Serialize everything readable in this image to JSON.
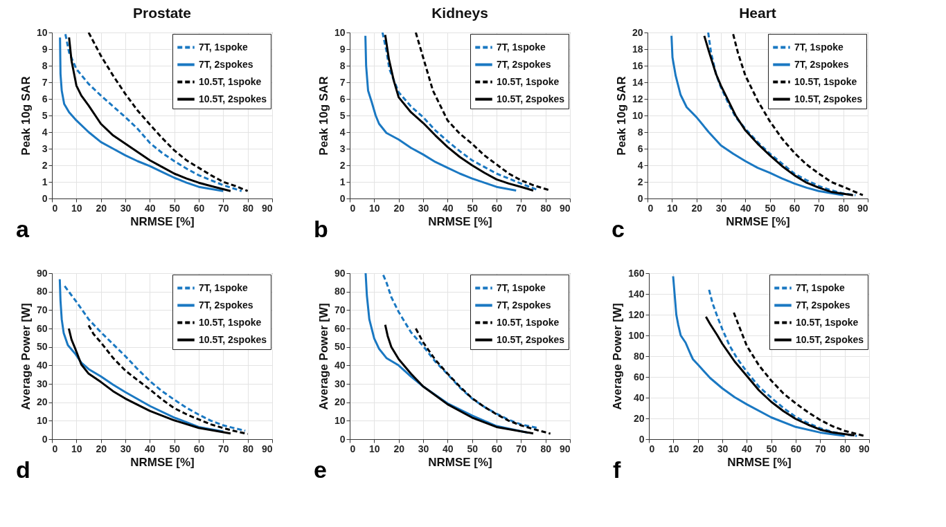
{
  "chart_data": [
    {
      "type": "line",
      "title": "Prostate",
      "xlabel": "NRMSE [%]",
      "ylabel": "Peak 10g SAR",
      "annotations": [
        "a"
      ],
      "xlim": [
        0,
        90
      ],
      "xticks": [
        0,
        10,
        20,
        30,
        40,
        50,
        60,
        70,
        80,
        90
      ],
      "ylim": [
        0,
        10
      ],
      "yticks": [
        0,
        1,
        2,
        3,
        4,
        5,
        6,
        7,
        8,
        9,
        10
      ],
      "grid": true,
      "legend": "top right",
      "series": [
        {
          "name": "7T, 1spoke",
          "color": "#1a78c2",
          "line_style": "dashed",
          "x": [
            5.5,
            7,
            10,
            15,
            20,
            25,
            30,
            35,
            40,
            45,
            50,
            55,
            60,
            65,
            70,
            77.5
          ],
          "values": [
            9.9,
            8.8,
            7.8,
            6.9,
            6.2,
            5.55,
            4.9,
            4.2,
            3.35,
            2.75,
            2.25,
            1.8,
            1.4,
            1.1,
            0.8,
            0.45
          ]
        },
        {
          "name": "7T, 2spokes",
          "color": "#1a78c2",
          "line_style": "solid",
          "x": [
            3.3,
            3.5,
            4,
            5,
            7,
            10,
            15,
            20,
            25,
            30,
            35,
            40,
            45,
            50,
            55,
            60,
            70
          ],
          "values": [
            9.7,
            7.5,
            6.5,
            5.7,
            5.2,
            4.7,
            4.0,
            3.4,
            3.0,
            2.6,
            2.25,
            1.95,
            1.6,
            1.25,
            0.95,
            0.7,
            0.45
          ]
        },
        {
          "name": "10.5T, 1spoke",
          "color": "#000000",
          "line_style": "dashed",
          "x": [
            15,
            20,
            25,
            30,
            35,
            40,
            45,
            50,
            55,
            60,
            65,
            70,
            75,
            80
          ],
          "values": [
            10,
            8.6,
            7.4,
            6.3,
            5.3,
            4.46,
            3.65,
            2.9,
            2.3,
            1.85,
            1.4,
            1.0,
            0.75,
            0.45
          ]
        },
        {
          "name": "10.5T, 2spokes",
          "color": "#000000",
          "line_style": "solid",
          "x": [
            7,
            8,
            10,
            12,
            15,
            20,
            25,
            30,
            35,
            40,
            45,
            50,
            55,
            60,
            65,
            73
          ],
          "values": [
            9.7,
            8.3,
            6.8,
            6.2,
            5.6,
            4.5,
            3.8,
            3.3,
            2.8,
            2.3,
            1.9,
            1.5,
            1.2,
            0.95,
            0.75,
            0.45
          ]
        }
      ]
    },
    {
      "type": "line",
      "title": "Kidneys",
      "xlabel": "NRMSE [%]",
      "ylabel": "Peak 10g SAR",
      "annotations": [
        "b"
      ],
      "xlim": [
        0,
        90
      ],
      "xticks": [
        0,
        10,
        20,
        30,
        40,
        50,
        60,
        70,
        80,
        90
      ],
      "ylim": [
        0,
        10
      ],
      "yticks": [
        0,
        1,
        2,
        3,
        4,
        5,
        6,
        7,
        8,
        9,
        10
      ],
      "grid": true,
      "legend": "top right",
      "series": [
        {
          "name": "7T, 1spoke",
          "color": "#1a78c2",
          "line_style": "dashed",
          "x": [
            13.4,
            15,
            16.2,
            20,
            25,
            30,
            35,
            40,
            45,
            50,
            55,
            60,
            65,
            70,
            77
          ],
          "values": [
            10,
            8.9,
            7.8,
            6.4,
            5.55,
            4.9,
            4.1,
            3.45,
            2.85,
            2.3,
            1.9,
            1.5,
            1.2,
            0.9,
            0.5
          ]
        },
        {
          "name": "7T, 2spokes",
          "color": "#1a78c2",
          "line_style": "solid",
          "x": [
            6.4,
            6.7,
            7.5,
            9,
            10.6,
            12,
            15,
            20,
            25,
            30,
            35,
            40,
            45,
            50,
            55,
            60,
            68
          ],
          "values": [
            9.8,
            8,
            6.5,
            5.8,
            5.0,
            4.5,
            3.95,
            3.55,
            3.05,
            2.65,
            2.2,
            1.85,
            1.5,
            1.2,
            0.95,
            0.7,
            0.48
          ]
        },
        {
          "name": "10.5T, 1spoke",
          "color": "#000000",
          "line_style": "dashed",
          "x": [
            27,
            30,
            34,
            38,
            40,
            45,
            50,
            55,
            60,
            65,
            70,
            75,
            82
          ],
          "values": [
            10,
            8.5,
            6.5,
            5.3,
            4.7,
            3.9,
            3.3,
            2.6,
            2.05,
            1.5,
            1.1,
            0.8,
            0.48
          ]
        },
        {
          "name": "10.5T, 2spokes",
          "color": "#000000",
          "line_style": "solid",
          "x": [
            14.5,
            16,
            18,
            20,
            25,
            30,
            35,
            40,
            45,
            50,
            55,
            60,
            65,
            70,
            75
          ],
          "values": [
            9.85,
            8.4,
            7.1,
            6.1,
            5.2,
            4.55,
            3.8,
            3.1,
            2.5,
            2.0,
            1.55,
            1.15,
            0.9,
            0.7,
            0.48
          ]
        }
      ]
    },
    {
      "type": "line",
      "title": "Heart",
      "xlabel": "NRMSE [%]",
      "ylabel": "Peak 10g SAR",
      "annotations": [
        "c"
      ],
      "xlim": [
        0,
        90
      ],
      "xticks": [
        0,
        10,
        20,
        30,
        40,
        50,
        60,
        70,
        80,
        90
      ],
      "ylim": [
        0,
        20
      ],
      "yticks": [
        0,
        2,
        4,
        6,
        8,
        10,
        12,
        14,
        16,
        18,
        20
      ],
      "grid": true,
      "legend": "top right",
      "series": [
        {
          "name": "7T, 1spoke",
          "color": "#1a78c2",
          "line_style": "dashed",
          "x": [
            24.8,
            26,
            28,
            30,
            33,
            36,
            40,
            45,
            50,
            55,
            60,
            65,
            70,
            75,
            80,
            85
          ],
          "values": [
            20,
            17.5,
            15,
            13.4,
            11.5,
            9.8,
            8.4,
            6.8,
            5.4,
            4.2,
            3.0,
            2.2,
            1.5,
            1.0,
            0.6,
            0.4
          ]
        },
        {
          "name": "7T, 2spokes",
          "color": "#1a78c2",
          "line_style": "solid",
          "x": [
            9.8,
            10.2,
            11.5,
            13.5,
            16,
            20,
            25,
            30,
            35,
            40,
            45,
            50,
            55,
            60,
            65,
            70,
            80
          ],
          "values": [
            19.6,
            17,
            14.8,
            12.5,
            11,
            9.8,
            8,
            6.4,
            5.4,
            4.5,
            3.7,
            3.1,
            2.4,
            1.8,
            1.3,
            0.9,
            0.4
          ]
        },
        {
          "name": "10.5T, 1spoke",
          "color": "#000000",
          "line_style": "dashed",
          "x": [
            35,
            37,
            40,
            45,
            50,
            55,
            60,
            65,
            70,
            75,
            80,
            88
          ],
          "values": [
            19.8,
            17.5,
            14.8,
            11.8,
            9.3,
            7.2,
            5.5,
            4.1,
            3.0,
            2.0,
            1.4,
            0.4
          ]
        },
        {
          "name": "10.5T, 2spokes",
          "color": "#000000",
          "line_style": "solid",
          "x": [
            23.2,
            25,
            28,
            30,
            33,
            36,
            40,
            45,
            50,
            55,
            60,
            65,
            70,
            75,
            84
          ],
          "values": [
            19.6,
            17.8,
            15,
            13.6,
            11.8,
            10.0,
            8.2,
            6.6,
            5.2,
            3.9,
            2.8,
            1.9,
            1.3,
            0.8,
            0.4
          ]
        }
      ]
    },
    {
      "type": "line",
      "xlabel": "NRMSE [%]",
      "ylabel": "Average Power [W]",
      "annotations": [
        "d"
      ],
      "xlim": [
        0,
        90
      ],
      "xticks": [
        0,
        10,
        20,
        30,
        40,
        50,
        60,
        70,
        80,
        90
      ],
      "ylim": [
        0,
        90
      ],
      "yticks": [
        0,
        10,
        20,
        30,
        40,
        50,
        60,
        70,
        80,
        90
      ],
      "grid": true,
      "legend": "top right",
      "series": [
        {
          "name": "7T, 1spoke",
          "color": "#1a78c2",
          "line_style": "dashed",
          "x": [
            5.2,
            8,
            10,
            15,
            20,
            25,
            30,
            35,
            40,
            45,
            50,
            55,
            60,
            65,
            70,
            75,
            79
          ],
          "values": [
            83,
            78,
            74.5,
            65,
            58,
            51.5,
            45,
            38,
            31.5,
            26,
            21.4,
            17,
            13.3,
            10,
            7.5,
            5.8,
            4.6
          ]
        },
        {
          "name": "7T, 2spokes",
          "color": "#1a78c2",
          "line_style": "solid",
          "x": [
            3.2,
            3.5,
            4,
            4.8,
            6.5,
            9.7,
            12,
            15,
            20,
            25,
            30,
            40,
            50,
            60,
            70
          ],
          "values": [
            86.7,
            75,
            65,
            57.6,
            51,
            46,
            41.5,
            38,
            34,
            29.5,
            25.5,
            18,
            11.7,
            6.6,
            4.1
          ]
        },
        {
          "name": "10.5T, 1spoke",
          "color": "#000000",
          "line_style": "dashed",
          "x": [
            15,
            17,
            20,
            25,
            30,
            35,
            40,
            45,
            50,
            55,
            60,
            65,
            70,
            75,
            80
          ],
          "values": [
            61.7,
            57,
            52.5,
            44,
            37.2,
            32,
            27,
            21.5,
            16.8,
            13.5,
            10.7,
            8,
            6,
            4.3,
            2.8
          ]
        },
        {
          "name": "10.5T, 2spokes",
          "color": "#000000",
          "line_style": "solid",
          "x": [
            6.9,
            8,
            9.7,
            12,
            15,
            20,
            25,
            30,
            40,
            50,
            60,
            73
          ],
          "values": [
            60,
            54,
            48.5,
            40.5,
            35.5,
            31,
            26,
            22,
            15.3,
            10.2,
            6.1,
            3.1
          ]
        }
      ]
    },
    {
      "type": "line",
      "xlabel": "NRMSE [%]",
      "ylabel": "Average Power [W]",
      "annotations": [
        "e"
      ],
      "xlim": [
        0,
        90
      ],
      "xticks": [
        0,
        10,
        20,
        30,
        40,
        50,
        60,
        70,
        80,
        90
      ],
      "ylim": [
        0,
        90
      ],
      "yticks": [
        0,
        10,
        20,
        30,
        40,
        50,
        60,
        70,
        80,
        90
      ],
      "grid": true,
      "legend": "top right",
      "series": [
        {
          "name": "7T, 1spoke",
          "color": "#1a78c2",
          "line_style": "dashed",
          "x": [
            13.7,
            15,
            17,
            20,
            25,
            30,
            35,
            40,
            45,
            50,
            55,
            60,
            65,
            70,
            77
          ],
          "values": [
            89,
            85,
            77,
            69,
            58,
            50.5,
            42,
            35.2,
            28,
            22,
            17.5,
            13.8,
            10.5,
            8,
            6
          ]
        },
        {
          "name": "7T, 2spokes",
          "color": "#1a78c2",
          "line_style": "solid",
          "x": [
            6.5,
            7,
            8,
            10,
            12,
            15,
            20,
            25,
            30,
            40,
            50,
            60,
            73
          ],
          "values": [
            90,
            78,
            65,
            54.6,
            49,
            44,
            40,
            34,
            28.6,
            19.4,
            12.8,
            7.1,
            3.5
          ]
        },
        {
          "name": "10.5T, 1spoke",
          "color": "#000000",
          "line_style": "dashed",
          "x": [
            27,
            30,
            35,
            40,
            45,
            50,
            55,
            60,
            65,
            70,
            75,
            82
          ],
          "values": [
            60,
            52.5,
            43,
            35.5,
            28.5,
            22.2,
            17.5,
            13.5,
            10,
            7.5,
            5.5,
            3
          ]
        },
        {
          "name": "10.5T, 2spokes",
          "color": "#000000",
          "line_style": "solid",
          "x": [
            14.5,
            15.5,
            17,
            20,
            25,
            30,
            40,
            50,
            60,
            75
          ],
          "values": [
            62,
            56,
            50,
            43.4,
            35.5,
            28.6,
            18.9,
            11.7,
            6.6,
            3.1
          ]
        }
      ]
    },
    {
      "type": "line",
      "xlabel": "NRMSE [%]",
      "ylabel": "Average Power [W]",
      "annotations": [
        "f"
      ],
      "xlim": [
        0,
        90
      ],
      "xticks": [
        0,
        10,
        20,
        30,
        40,
        50,
        60,
        70,
        80,
        90
      ],
      "ylim": [
        0,
        160
      ],
      "yticks": [
        0,
        20,
        40,
        60,
        80,
        100,
        120,
        140,
        160
      ],
      "grid": true,
      "legend": "top right",
      "series": [
        {
          "name": "7T, 1spoke",
          "color": "#1a78c2",
          "line_style": "dashed",
          "x": [
            24.6,
            26,
            28,
            30,
            33,
            36,
            40,
            45,
            50,
            55,
            60,
            65,
            70,
            75,
            80,
            85
          ],
          "values": [
            144,
            131,
            118,
            106,
            90,
            78,
            65,
            50.5,
            40,
            30,
            21.5,
            15.5,
            10.5,
            7,
            4.5,
            3.1
          ]
        },
        {
          "name": "7T, 2spokes",
          "color": "#1a78c2",
          "line_style": "solid",
          "x": [
            9.9,
            10.5,
            11.2,
            12,
            13,
            15,
            17,
            18,
            20,
            25,
            30,
            35,
            40,
            50,
            60,
            70,
            80
          ],
          "values": [
            157,
            140,
            120,
            110,
            100,
            93,
            82,
            77,
            72,
            59,
            49,
            40.5,
            33.6,
            21,
            11.8,
            6.4,
            3.1
          ]
        },
        {
          "name": "10.5T, 1spoke",
          "color": "#000000",
          "line_style": "dashed",
          "x": [
            34.7,
            37,
            40,
            45,
            50,
            55,
            60,
            65,
            70,
            75,
            80,
            88
          ],
          "values": [
            122,
            108,
            90,
            71,
            56.5,
            44,
            34.5,
            26,
            18.5,
            12.5,
            8,
            3.1
          ]
        },
        {
          "name": "10.5T, 2spokes",
          "color": "#000000",
          "line_style": "solid",
          "x": [
            23.3,
            25,
            28,
            30,
            35,
            40,
            45,
            50,
            55,
            60,
            65,
            70,
            75,
            84
          ],
          "values": [
            118,
            111,
            100,
            92,
            75,
            61,
            47,
            36,
            27,
            19.5,
            14,
            9.2,
            6.5,
            3.6
          ]
        }
      ]
    }
  ]
}
